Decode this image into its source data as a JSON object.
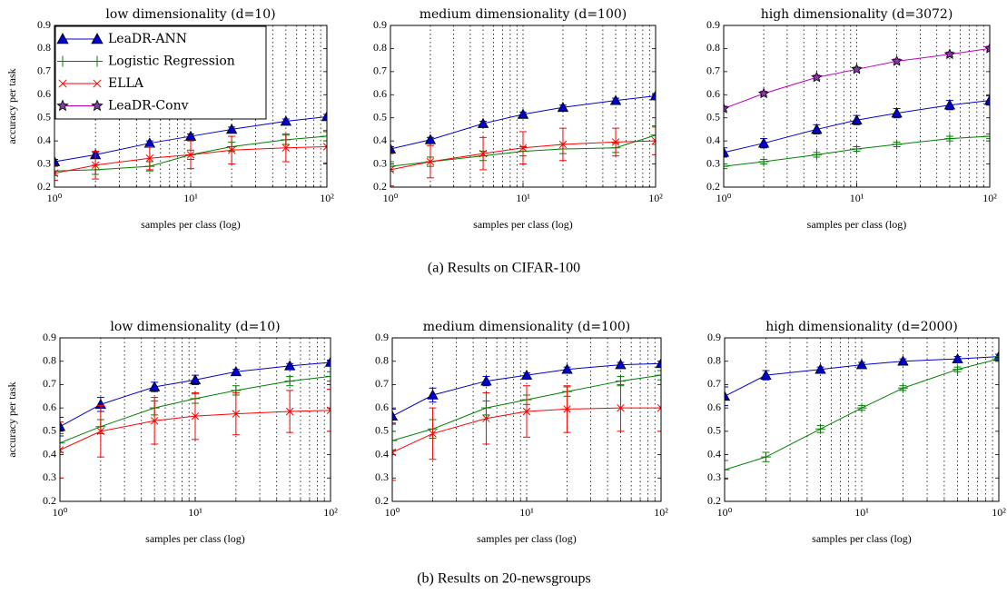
{
  "legend": {
    "loc": "upper left",
    "entries": [
      {
        "name": "LeaDR-ANN",
        "color": "#0000cc",
        "marker": "triangle"
      },
      {
        "name": "Logistic Regression",
        "color": "#008000",
        "marker": "plus"
      },
      {
        "name": "ELLA",
        "color": "#ff0000",
        "marker": "cross"
      },
      {
        "name": "LeaDR-Conv",
        "color": "#bf00bf",
        "marker": "star"
      }
    ]
  },
  "captions": [
    "(a) Results on CIFAR-100",
    "(b) Results on 20-newsgroups"
  ],
  "chart_data": [
    {
      "type": "line",
      "title": "low dimensionality (d=10)",
      "xlabel": "samples per class (log)",
      "ylabel": "accuracy per task",
      "xlog": true,
      "xgrid": true,
      "x": [
        1,
        2,
        5,
        10,
        20,
        50,
        100
      ],
      "xlim": [
        1,
        100
      ],
      "xticks": [
        {
          "value": 1,
          "label": "10⁰"
        },
        {
          "value": 10,
          "label": "10¹"
        },
        {
          "value": 100,
          "label": "10²"
        }
      ],
      "xminorticks": [
        2,
        3,
        4,
        5,
        6,
        7,
        8,
        9,
        20,
        30,
        40,
        50,
        60,
        70,
        80,
        90
      ],
      "ylim": [
        0.2,
        0.9
      ],
      "yticks": [
        0.2,
        0.3,
        0.4,
        0.5,
        0.6,
        0.7,
        0.8,
        0.9
      ],
      "series": [
        {
          "color": "#0000cc",
          "marker": "triangle",
          "values": [
            0.31,
            0.34,
            0.39,
            0.42,
            0.45,
            0.485,
            0.505
          ],
          "errors": [
            0.01,
            0.01,
            0.01,
            0.01,
            0.01,
            0.01,
            0.01
          ]
        },
        {
          "color": "#008000",
          "marker": "plus",
          "values": [
            0.27,
            0.275,
            0.29,
            0.34,
            0.375,
            0.405,
            0.42
          ],
          "errors": [
            0.02,
            0.02,
            0.02,
            0.02,
            0.02,
            0.02,
            0.02
          ]
        },
        {
          "color": "#ff0000",
          "marker": "cross",
          "values": [
            0.26,
            0.295,
            0.325,
            0.34,
            0.36,
            0.37,
            0.375
          ],
          "errors": [
            0.03,
            0.06,
            0.05,
            0.06,
            0.06,
            0.06,
            0.07
          ]
        }
      ]
    },
    {
      "type": "line",
      "title": "medium dimensionality (d=100)",
      "xlabel": "samples per class (log)",
      "xlog": true,
      "xgrid": true,
      "x": [
        1,
        2,
        5,
        10,
        20,
        50,
        100
      ],
      "xlim": [
        1,
        100
      ],
      "xticks": [
        {
          "value": 1,
          "label": "10⁰"
        },
        {
          "value": 10,
          "label": "10¹"
        },
        {
          "value": 100,
          "label": "10²"
        }
      ],
      "xminorticks": [
        2,
        3,
        4,
        5,
        6,
        7,
        8,
        9,
        20,
        30,
        40,
        50,
        60,
        70,
        80,
        90
      ],
      "ylim": [
        0.2,
        0.9
      ],
      "yticks": [
        0.2,
        0.3,
        0.4,
        0.5,
        0.6,
        0.7,
        0.8,
        0.9
      ],
      "series": [
        {
          "color": "#0000cc",
          "marker": "triangle",
          "values": [
            0.365,
            0.405,
            0.475,
            0.515,
            0.545,
            0.575,
            0.595
          ],
          "errors": [
            0.01,
            0.01,
            0.01,
            0.01,
            0.01,
            0.01,
            0.01
          ]
        },
        {
          "color": "#008000",
          "marker": "plus",
          "values": [
            0.29,
            0.31,
            0.335,
            0.355,
            0.365,
            0.37,
            0.425
          ],
          "errors": [
            0.02,
            0.02,
            0.02,
            0.02,
            0.02,
            0.02,
            0.04
          ]
        },
        {
          "color": "#ff0000",
          "marker": "cross",
          "values": [
            0.275,
            0.31,
            0.345,
            0.37,
            0.385,
            0.395,
            0.4
          ],
          "errors": [
            0.07,
            0.07,
            0.07,
            0.07,
            0.07,
            0.06,
            0.06
          ]
        }
      ]
    },
    {
      "type": "line",
      "title": "high dimensionality (d=3072)",
      "xlabel": "samples per class (log)",
      "xlog": true,
      "xgrid": true,
      "x": [
        1,
        2,
        5,
        10,
        20,
        50,
        100
      ],
      "xlim": [
        1,
        100
      ],
      "xticks": [
        {
          "value": 1,
          "label": "10⁰"
        },
        {
          "value": 10,
          "label": "10¹"
        },
        {
          "value": 100,
          "label": "10²"
        }
      ],
      "xminorticks": [
        2,
        3,
        4,
        5,
        6,
        7,
        8,
        9,
        20,
        30,
        40,
        50,
        60,
        70,
        80,
        90
      ],
      "ylim": [
        0.2,
        0.9
      ],
      "yticks": [
        0.2,
        0.3,
        0.4,
        0.5,
        0.6,
        0.7,
        0.8,
        0.9
      ],
      "series": [
        {
          "color": "#bf00bf",
          "marker": "star",
          "values": [
            0.54,
            0.605,
            0.675,
            0.71,
            0.745,
            0.775,
            0.8
          ],
          "errors": [
            0.01,
            0.01,
            0.01,
            0.01,
            0.01,
            0.01,
            0.01
          ]
        },
        {
          "color": "#0000cc",
          "marker": "triangle",
          "values": [
            0.35,
            0.39,
            0.45,
            0.49,
            0.52,
            0.555,
            0.575
          ],
          "errors": [
            0.02,
            0.02,
            0.02,
            0.02,
            0.02,
            0.02,
            0.02
          ]
        },
        {
          "color": "#008000",
          "marker": "plus",
          "values": [
            0.29,
            0.31,
            0.34,
            0.365,
            0.385,
            0.41,
            0.42
          ],
          "errors": [
            0.01,
            0.01,
            0.01,
            0.01,
            0.01,
            0.01,
            0.01
          ]
        }
      ]
    },
    {
      "type": "line",
      "title": "low dimensionality (d=10)",
      "xlabel": "samples per class (log)",
      "ylabel": "accuracy per task",
      "xlog": true,
      "xgrid": true,
      "x": [
        1,
        2,
        5,
        10,
        20,
        50,
        100
      ],
      "xlim": [
        1,
        100
      ],
      "xticks": [
        {
          "value": 1,
          "label": "10⁰"
        },
        {
          "value": 10,
          "label": "10¹"
        },
        {
          "value": 100,
          "label": "10²"
        }
      ],
      "xminorticks": [
        2,
        3,
        4,
        5,
        6,
        7,
        8,
        9,
        20,
        30,
        40,
        50,
        60,
        70,
        80,
        90
      ],
      "ylim": [
        0.2,
        0.9
      ],
      "yticks": [
        0.2,
        0.3,
        0.4,
        0.5,
        0.6,
        0.7,
        0.8,
        0.9
      ],
      "series": [
        {
          "color": "#0000cc",
          "marker": "triangle",
          "values": [
            0.52,
            0.615,
            0.69,
            0.72,
            0.755,
            0.78,
            0.795
          ],
          "errors": [
            0.04,
            0.03,
            0.02,
            0.02,
            0.01,
            0.01,
            0.01
          ]
        },
        {
          "color": "#008000",
          "marker": "plus",
          "values": [
            0.45,
            0.52,
            0.6,
            0.64,
            0.675,
            0.715,
            0.735
          ],
          "errors": [
            0.04,
            0.03,
            0.03,
            0.02,
            0.02,
            0.02,
            0.02
          ]
        },
        {
          "color": "#ff0000",
          "marker": "cross",
          "values": [
            0.42,
            0.5,
            0.545,
            0.565,
            0.575,
            0.585,
            0.59
          ],
          "errors": [
            0.12,
            0.11,
            0.1,
            0.1,
            0.09,
            0.09,
            0.09
          ]
        }
      ]
    },
    {
      "type": "line",
      "title": "medium dimensionality (d=100)",
      "xlabel": "samples per class (log)",
      "xlog": true,
      "xgrid": true,
      "x": [
        1,
        2,
        5,
        10,
        20,
        50,
        100
      ],
      "xlim": [
        1,
        100
      ],
      "xticks": [
        {
          "value": 1,
          "label": "10⁰"
        },
        {
          "value": 10,
          "label": "10¹"
        },
        {
          "value": 100,
          "label": "10²"
        }
      ],
      "xminorticks": [
        2,
        3,
        4,
        5,
        6,
        7,
        8,
        9,
        20,
        30,
        40,
        50,
        60,
        70,
        80,
        90
      ],
      "ylim": [
        0.2,
        0.9
      ],
      "yticks": [
        0.2,
        0.3,
        0.4,
        0.5,
        0.6,
        0.7,
        0.8,
        0.9
      ],
      "series": [
        {
          "color": "#0000cc",
          "marker": "triangle",
          "values": [
            0.565,
            0.655,
            0.715,
            0.74,
            0.765,
            0.785,
            0.79
          ],
          "errors": [
            0.03,
            0.03,
            0.02,
            0.01,
            0.01,
            0.01,
            0.01
          ]
        },
        {
          "color": "#008000",
          "marker": "plus",
          "values": [
            0.46,
            0.51,
            0.6,
            0.635,
            0.67,
            0.715,
            0.74
          ],
          "errors": [
            0.04,
            0.04,
            0.03,
            0.02,
            0.02,
            0.02,
            0.02
          ]
        },
        {
          "color": "#ff0000",
          "marker": "cross",
          "values": [
            0.41,
            0.49,
            0.555,
            0.585,
            0.595,
            0.6,
            0.6
          ],
          "errors": [
            0.12,
            0.11,
            0.11,
            0.11,
            0.1,
            0.1,
            0.1
          ]
        }
      ]
    },
    {
      "type": "line",
      "title": "high dimensionality (d=2000)",
      "xlabel": "samples per class (log)",
      "xlog": true,
      "xgrid": true,
      "x": [
        1,
        2,
        5,
        10,
        20,
        50,
        100
      ],
      "xlim": [
        1,
        100
      ],
      "xticks": [
        {
          "value": 1,
          "label": "10⁰"
        },
        {
          "value": 10,
          "label": "10¹"
        },
        {
          "value": 100,
          "label": "10²"
        }
      ],
      "xminorticks": [
        2,
        3,
        4,
        5,
        6,
        7,
        8,
        9,
        20,
        30,
        40,
        50,
        60,
        70,
        80,
        90
      ],
      "ylim": [
        0.2,
        0.9
      ],
      "yticks": [
        0.2,
        0.3,
        0.4,
        0.5,
        0.6,
        0.7,
        0.8,
        0.9
      ],
      "series": [
        {
          "color": "#0000cc",
          "marker": "triangle",
          "values": [
            0.65,
            0.74,
            0.765,
            0.785,
            0.8,
            0.81,
            0.82
          ],
          "errors": [
            0.04,
            0.02,
            0.01,
            0.01,
            0.01,
            0.01,
            0.01
          ]
        },
        {
          "color": "#008000",
          "marker": "plus",
          "values": [
            0.335,
            0.39,
            0.51,
            0.6,
            0.685,
            0.765,
            0.81
          ],
          "errors": [
            0.04,
            0.02,
            0.015,
            0.01,
            0.01,
            0.01,
            0.01
          ]
        }
      ]
    }
  ]
}
